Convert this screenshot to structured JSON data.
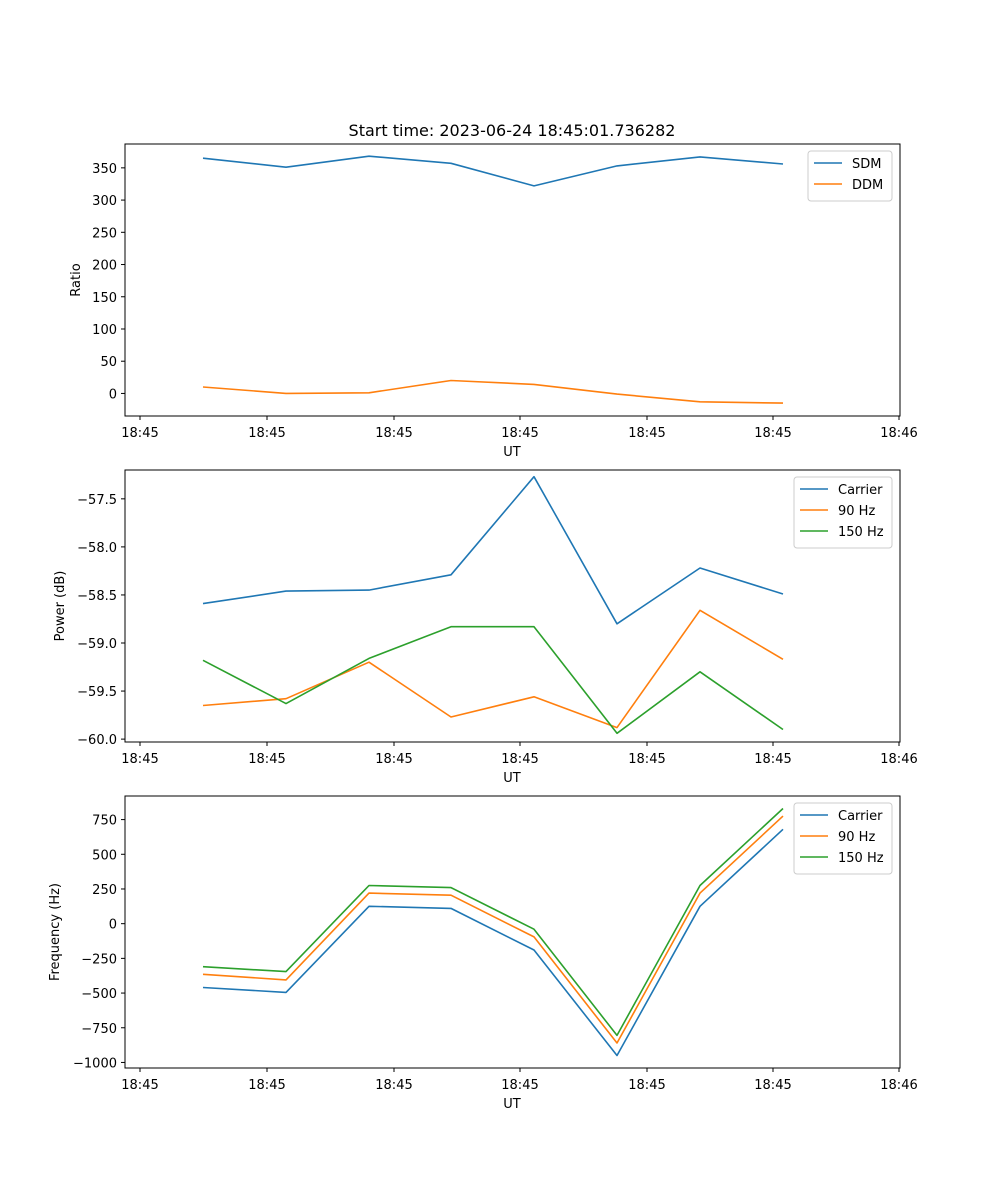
{
  "figure_title": "Start time: 2023-06-24 18:45:01.736282",
  "chart_data": [
    {
      "type": "line",
      "title": "Start time: 2023-06-24 18:45:01.736282",
      "xlabel": "UT",
      "ylabel": "Ratio",
      "x_tick_labels": [
        "18:45",
        "18:45",
        "18:45",
        "18:45",
        "18:45",
        "18:45",
        "18:45",
        "18:46"
      ],
      "yticks": [
        0,
        50,
        100,
        150,
        200,
        250,
        300,
        350
      ],
      "ylim": [
        -35,
        387
      ],
      "legend_position": "top-right",
      "grid": false,
      "series": [
        {
          "name": "SDM",
          "color": "#1f77b4",
          "values": [
            365,
            351,
            368,
            357,
            322,
            353,
            367,
            356
          ]
        },
        {
          "name": "DDM",
          "color": "#ff7f0e",
          "values": [
            10,
            0,
            1,
            20,
            14,
            -1,
            -13,
            -15
          ]
        }
      ]
    },
    {
      "type": "line",
      "xlabel": "UT",
      "ylabel": "Power (dB)",
      "x_tick_labels": [
        "18:45",
        "18:45",
        "18:45",
        "18:45",
        "18:45",
        "18:45",
        "18:45",
        "18:46"
      ],
      "yticks": [
        -60.0,
        -59.5,
        -59.0,
        -58.5,
        -58.0,
        -57.5
      ],
      "ytick_labels": [
        "−60.0",
        "−59.5",
        "−59.0",
        "−58.5",
        "−58.0",
        "−57.5"
      ],
      "ylim": [
        -60.03,
        -57.2
      ],
      "legend_position": "top-right",
      "grid": false,
      "series": [
        {
          "name": "Carrier",
          "color": "#1f77b4",
          "values": [
            -58.59,
            -58.46,
            -58.45,
            -58.29,
            -57.27,
            -58.8,
            -58.22,
            -58.49
          ]
        },
        {
          "name": "90 Hz",
          "color": "#ff7f0e",
          "values": [
            -59.65,
            -59.58,
            -59.2,
            -59.77,
            -59.56,
            -59.88,
            -58.66,
            -59.17
          ]
        },
        {
          "name": "150 Hz",
          "color": "#2ca02c",
          "values": [
            -59.18,
            -59.63,
            -59.16,
            -58.83,
            -58.83,
            -59.94,
            -59.3,
            -59.9
          ]
        }
      ]
    },
    {
      "type": "line",
      "xlabel": "UT",
      "ylabel": "Frequency (Hz)",
      "x_tick_labels": [
        "18:45",
        "18:45",
        "18:45",
        "18:45",
        "18:45",
        "18:45",
        "18:45",
        "18:46"
      ],
      "yticks": [
        -1000,
        -750,
        -500,
        -250,
        0,
        250,
        500,
        750
      ],
      "ytick_labels": [
        "−1000",
        "−750",
        "−500",
        "−250",
        "0",
        "250",
        "500",
        "750"
      ],
      "ylim": [
        -1040,
        920
      ],
      "legend_position": "top-right",
      "grid": false,
      "series": [
        {
          "name": "Carrier",
          "color": "#1f77b4",
          "values": [
            -460,
            -495,
            125,
            110,
            -190,
            -950,
            125,
            680
          ]
        },
        {
          "name": "90 Hz",
          "color": "#ff7f0e",
          "values": [
            -365,
            -405,
            220,
            205,
            -95,
            -860,
            220,
            775
          ]
        },
        {
          "name": "150 Hz",
          "color": "#2ca02c",
          "values": [
            -310,
            -345,
            275,
            260,
            -40,
            -805,
            275,
            830
          ]
        }
      ]
    }
  ]
}
